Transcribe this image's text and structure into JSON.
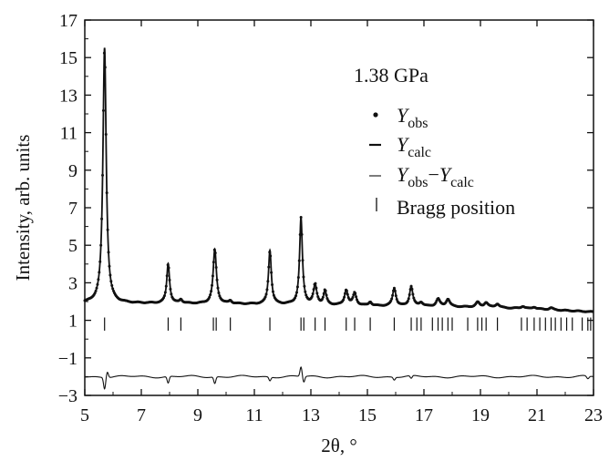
{
  "chart_data": {
    "type": "line",
    "annotation": "1.38 GPa",
    "xlabel": "2θ, °",
    "ylabel": "Intensity, arb. units",
    "xlim": [
      5,
      23
    ],
    "ylim": [
      -3,
      17
    ],
    "xticks": [
      5,
      7,
      9,
      11,
      13,
      15,
      17,
      19,
      21,
      23
    ],
    "yticks": [
      -3,
      -1,
      1,
      3,
      5,
      7,
      9,
      11,
      13,
      15,
      17
    ],
    "legend": {
      "position": "top-right",
      "entries": [
        {
          "marker": "dot",
          "base": "Y",
          "sub": "obs"
        },
        {
          "marker": "dash",
          "base": "Y",
          "sub": "calc"
        },
        {
          "marker": "line",
          "base": "Y",
          "sub": "obs",
          "minus": "−",
          "base2": "Y",
          "sub2": "calc"
        },
        {
          "marker": "bar",
          "text": "Bragg position"
        }
      ]
    },
    "baseline": [
      [
        5,
        1.92
      ],
      [
        8,
        1.9
      ],
      [
        12,
        1.85
      ],
      [
        16,
        1.75
      ],
      [
        19,
        1.7
      ],
      [
        21,
        1.6
      ],
      [
        23,
        1.45
      ]
    ],
    "peaks": [
      {
        "x": 5.7,
        "height": 13.6,
        "width": 0.07
      },
      {
        "x": 7.95,
        "height": 2.1,
        "width": 0.06
      },
      {
        "x": 8.4,
        "height": 0.2,
        "width": 0.06
      },
      {
        "x": 9.6,
        "height": 2.9,
        "width": 0.07
      },
      {
        "x": 10.15,
        "height": 0.15,
        "width": 0.06
      },
      {
        "x": 11.55,
        "height": 2.85,
        "width": 0.06
      },
      {
        "x": 12.65,
        "height": 4.6,
        "width": 0.06
      },
      {
        "x": 13.15,
        "height": 1.05,
        "width": 0.07
      },
      {
        "x": 13.5,
        "height": 0.75,
        "width": 0.06
      },
      {
        "x": 14.25,
        "height": 0.8,
        "width": 0.07
      },
      {
        "x": 14.55,
        "height": 0.65,
        "width": 0.07
      },
      {
        "x": 15.1,
        "height": 0.2,
        "width": 0.06
      },
      {
        "x": 15.95,
        "height": 0.95,
        "width": 0.07
      },
      {
        "x": 16.55,
        "height": 1.05,
        "width": 0.07
      },
      {
        "x": 16.9,
        "height": 0.2,
        "width": 0.08
      },
      {
        "x": 17.5,
        "height": 0.4,
        "width": 0.08
      },
      {
        "x": 17.85,
        "height": 0.4,
        "width": 0.08
      },
      {
        "x": 18.9,
        "height": 0.25,
        "width": 0.08
      },
      {
        "x": 19.2,
        "height": 0.25,
        "width": 0.08
      },
      {
        "x": 19.6,
        "height": 0.2,
        "width": 0.08
      },
      {
        "x": 20.5,
        "height": 0.12,
        "width": 0.08
      },
      {
        "x": 20.9,
        "height": 0.1,
        "width": 0.08
      },
      {
        "x": 21.5,
        "height": 0.1,
        "width": 0.08
      }
    ],
    "bragg_y_range": [
      0.45,
      1.15
    ],
    "bragg_positions": [
      5.7,
      7.95,
      8.4,
      9.55,
      9.65,
      10.15,
      11.55,
      12.65,
      12.75,
      13.15,
      13.5,
      14.25,
      14.55,
      15.1,
      15.95,
      16.55,
      16.75,
      16.9,
      17.3,
      17.5,
      17.65,
      17.85,
      18.0,
      18.55,
      18.9,
      19.05,
      19.2,
      19.6,
      20.45,
      20.65,
      20.9,
      21.1,
      21.3,
      21.5,
      21.65,
      21.85,
      22.05,
      22.25,
      22.6,
      22.8,
      22.9
    ],
    "difference": {
      "baseline": -2.0,
      "features": [
        {
          "x": 5.7,
          "amplitude": -0.6,
          "width": 0.05
        },
        {
          "x": 5.8,
          "amplitude": 0.3,
          "width": 0.05
        },
        {
          "x": 7.95,
          "amplitude": -0.35,
          "width": 0.05
        },
        {
          "x": 9.6,
          "amplitude": -0.35,
          "width": 0.05
        },
        {
          "x": 11.55,
          "amplitude": -0.2,
          "width": 0.05
        },
        {
          "x": 12.65,
          "amplitude": 0.5,
          "width": 0.05
        },
        {
          "x": 12.75,
          "amplitude": -0.3,
          "width": 0.05
        },
        {
          "x": 15.95,
          "amplitude": -0.15,
          "width": 0.05
        },
        {
          "x": 16.55,
          "amplitude": -0.15,
          "width": 0.05
        },
        {
          "x": 22.8,
          "amplitude": -0.15,
          "width": 0.06
        }
      ]
    }
  }
}
